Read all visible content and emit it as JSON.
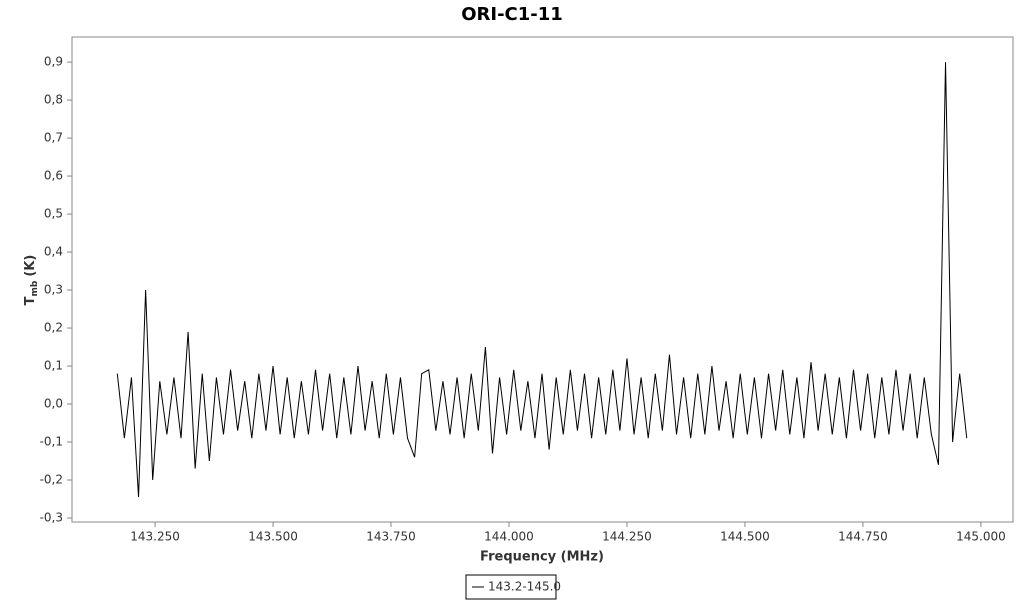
{
  "chart_data": {
    "type": "line",
    "title": "ORI-C1-11",
    "xlabel": "Frequency (MHz)",
    "ylabel": "T",
    "ylabel_sub": "mb",
    "ylabel_unit": "(K)",
    "xlim": [
      143.074,
      145.068
    ],
    "ylim": [
      -0.3105,
      0.966
    ],
    "xticks": [
      {
        "value": 143.25,
        "label": "143.250"
      },
      {
        "value": 143.5,
        "label": "143.500"
      },
      {
        "value": 143.75,
        "label": "143.750"
      },
      {
        "value": 144.0,
        "label": "144.000"
      },
      {
        "value": 144.25,
        "label": "144.250"
      },
      {
        "value": 144.5,
        "label": "144.500"
      },
      {
        "value": 144.75,
        "label": "144.750"
      },
      {
        "value": 145.0,
        "label": "145.000"
      }
    ],
    "yticks": [
      {
        "value": -0.3,
        "label": "-0,3"
      },
      {
        "value": -0.2,
        "label": "-0,2"
      },
      {
        "value": -0.1,
        "label": "-0,1"
      },
      {
        "value": 0,
        "label": "0,0"
      },
      {
        "value": 0.1,
        "label": "0,1"
      },
      {
        "value": 0.2,
        "label": "0,2"
      },
      {
        "value": 0.3,
        "label": "0,3"
      },
      {
        "value": 0.4,
        "label": "0,4"
      },
      {
        "value": 0.5,
        "label": "0,5"
      },
      {
        "value": 0.6,
        "label": "0,6"
      },
      {
        "value": 0.7,
        "label": "0,7"
      },
      {
        "value": 0.8,
        "label": "0,8"
      },
      {
        "value": 0.9,
        "label": "0,9"
      }
    ],
    "x": [
      143.17,
      143.185,
      143.2,
      143.215,
      143.23,
      143.245,
      143.26,
      143.275,
      143.29,
      143.305,
      143.32,
      143.335,
      143.35,
      143.365,
      143.38,
      143.395,
      143.41,
      143.425,
      143.44,
      143.455,
      143.47,
      143.485,
      143.5,
      143.515,
      143.53,
      143.545,
      143.56,
      143.575,
      143.59,
      143.605,
      143.62,
      143.635,
      143.65,
      143.665,
      143.68,
      143.695,
      143.71,
      143.725,
      143.74,
      143.755,
      143.77,
      143.785,
      143.8,
      143.815,
      143.83,
      143.845,
      143.86,
      143.875,
      143.89,
      143.905,
      143.92,
      143.935,
      143.95,
      143.965,
      143.98,
      143.995,
      144.01,
      144.025,
      144.04,
      144.055,
      144.07,
      144.085,
      144.1,
      144.115,
      144.13,
      144.145,
      144.16,
      144.175,
      144.19,
      144.205,
      144.22,
      144.235,
      144.25,
      144.265,
      144.28,
      144.295,
      144.31,
      144.325,
      144.34,
      144.355,
      144.37,
      144.385,
      144.4,
      144.415,
      144.43,
      144.445,
      144.46,
      144.475,
      144.49,
      144.505,
      144.52,
      144.535,
      144.55,
      144.565,
      144.58,
      144.595,
      144.61,
      144.625,
      144.64,
      144.655,
      144.67,
      144.685,
      144.7,
      144.715,
      144.73,
      144.745,
      144.76,
      144.775,
      144.79,
      144.805,
      144.82,
      144.835,
      144.85,
      144.865,
      144.88,
      144.895,
      144.91,
      144.925,
      144.94,
      144.955,
      144.97
    ],
    "series": [
      {
        "name": "143.2-145.0",
        "color": "#000000",
        "values": [
          0.08,
          -0.09,
          0.07,
          -0.245,
          0.3,
          -0.2,
          0.06,
          -0.08,
          0.07,
          -0.09,
          0.19,
          -0.17,
          0.08,
          -0.15,
          0.07,
          -0.08,
          0.09,
          -0.07,
          0.06,
          -0.09,
          0.08,
          -0.07,
          0.1,
          -0.08,
          0.07,
          -0.09,
          0.06,
          -0.08,
          0.09,
          -0.07,
          0.08,
          -0.09,
          0.07,
          -0.08,
          0.1,
          -0.07,
          0.06,
          -0.09,
          0.08,
          -0.08,
          0.07,
          -0.09,
          -0.14,
          0.08,
          0.09,
          -0.07,
          0.06,
          -0.08,
          0.07,
          -0.09,
          0.08,
          -0.07,
          0.15,
          -0.13,
          0.07,
          -0.08,
          0.09,
          -0.07,
          0.06,
          -0.09,
          0.08,
          -0.12,
          0.07,
          -0.08,
          0.09,
          -0.07,
          0.08,
          -0.09,
          0.07,
          -0.08,
          0.09,
          -0.07,
          0.12,
          -0.08,
          0.07,
          -0.09,
          0.08,
          -0.07,
          0.13,
          -0.08,
          0.07,
          -0.09,
          0.08,
          -0.08,
          0.1,
          -0.07,
          0.06,
          -0.09,
          0.08,
          -0.08,
          0.07,
          -0.09,
          0.08,
          -0.07,
          0.09,
          -0.08,
          0.07,
          -0.09,
          0.11,
          -0.07,
          0.08,
          -0.08,
          0.07,
          -0.09,
          0.09,
          -0.07,
          0.08,
          -0.09,
          0.07,
          -0.08,
          0.09,
          -0.07,
          0.08,
          -0.09,
          0.07,
          -0.08,
          -0.16,
          0.9,
          -0.1,
          0.08,
          -0.09
        ]
      }
    ]
  }
}
